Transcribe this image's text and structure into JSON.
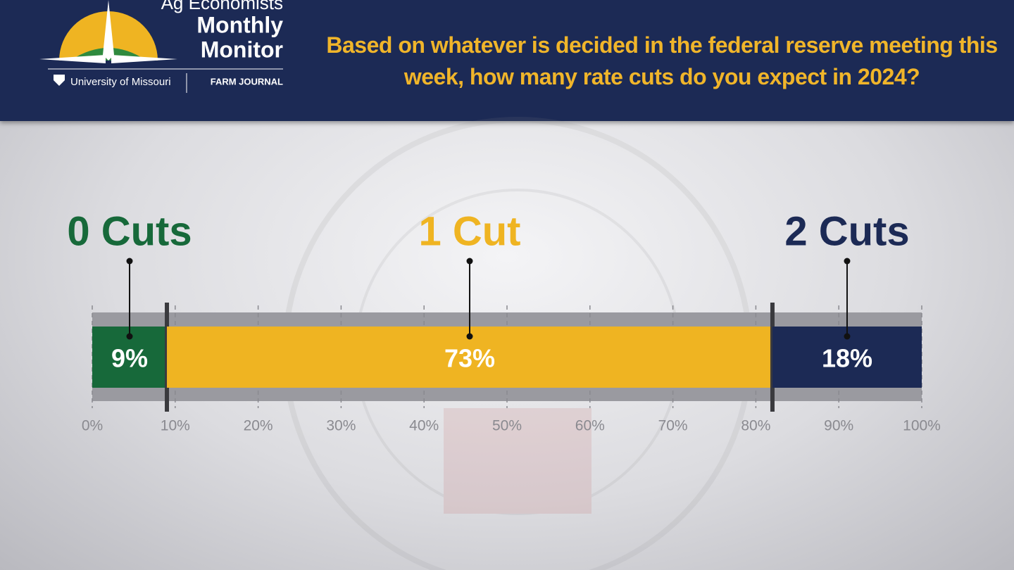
{
  "header": {
    "logo_title": "Ag Economists",
    "logo_line1": "Monthly",
    "logo_line2": "Monitor",
    "partners": [
      "University of Missouri",
      "FARM JOURNAL"
    ]
  },
  "chart_data": {
    "type": "stacked_bar",
    "title": "Based on whatever is decided in the federal reserve meeting this week, how many rate cuts do you expect in 2024?",
    "series": [
      {
        "name": "0 Cuts",
        "color": "#17693a",
        "values": [
          9
        ],
        "value_labels": [
          "9%"
        ]
      },
      {
        "name": "1 Cut",
        "color": "#efb422",
        "values": [
          73
        ],
        "value_labels": [
          "73%"
        ]
      },
      {
        "name": "2 Cuts",
        "color": "#1c2a55",
        "values": [
          18
        ],
        "value_labels": [
          "18%"
        ]
      }
    ],
    "xlim": [
      0,
      100
    ],
    "xticks": [
      {
        "value": 0,
        "label": "0%"
      },
      {
        "value": 10,
        "label": "10%"
      },
      {
        "value": 20,
        "label": "20%"
      },
      {
        "value": 30,
        "label": "30%"
      },
      {
        "value": 40,
        "label": "40%"
      },
      {
        "value": 50,
        "label": "50%"
      },
      {
        "value": 60,
        "label": "60%"
      },
      {
        "value": 70,
        "label": "70%"
      },
      {
        "value": 80,
        "label": "80%"
      },
      {
        "value": 90,
        "label": "90%"
      },
      {
        "value": 100,
        "label": "100%"
      }
    ],
    "grid": true
  }
}
